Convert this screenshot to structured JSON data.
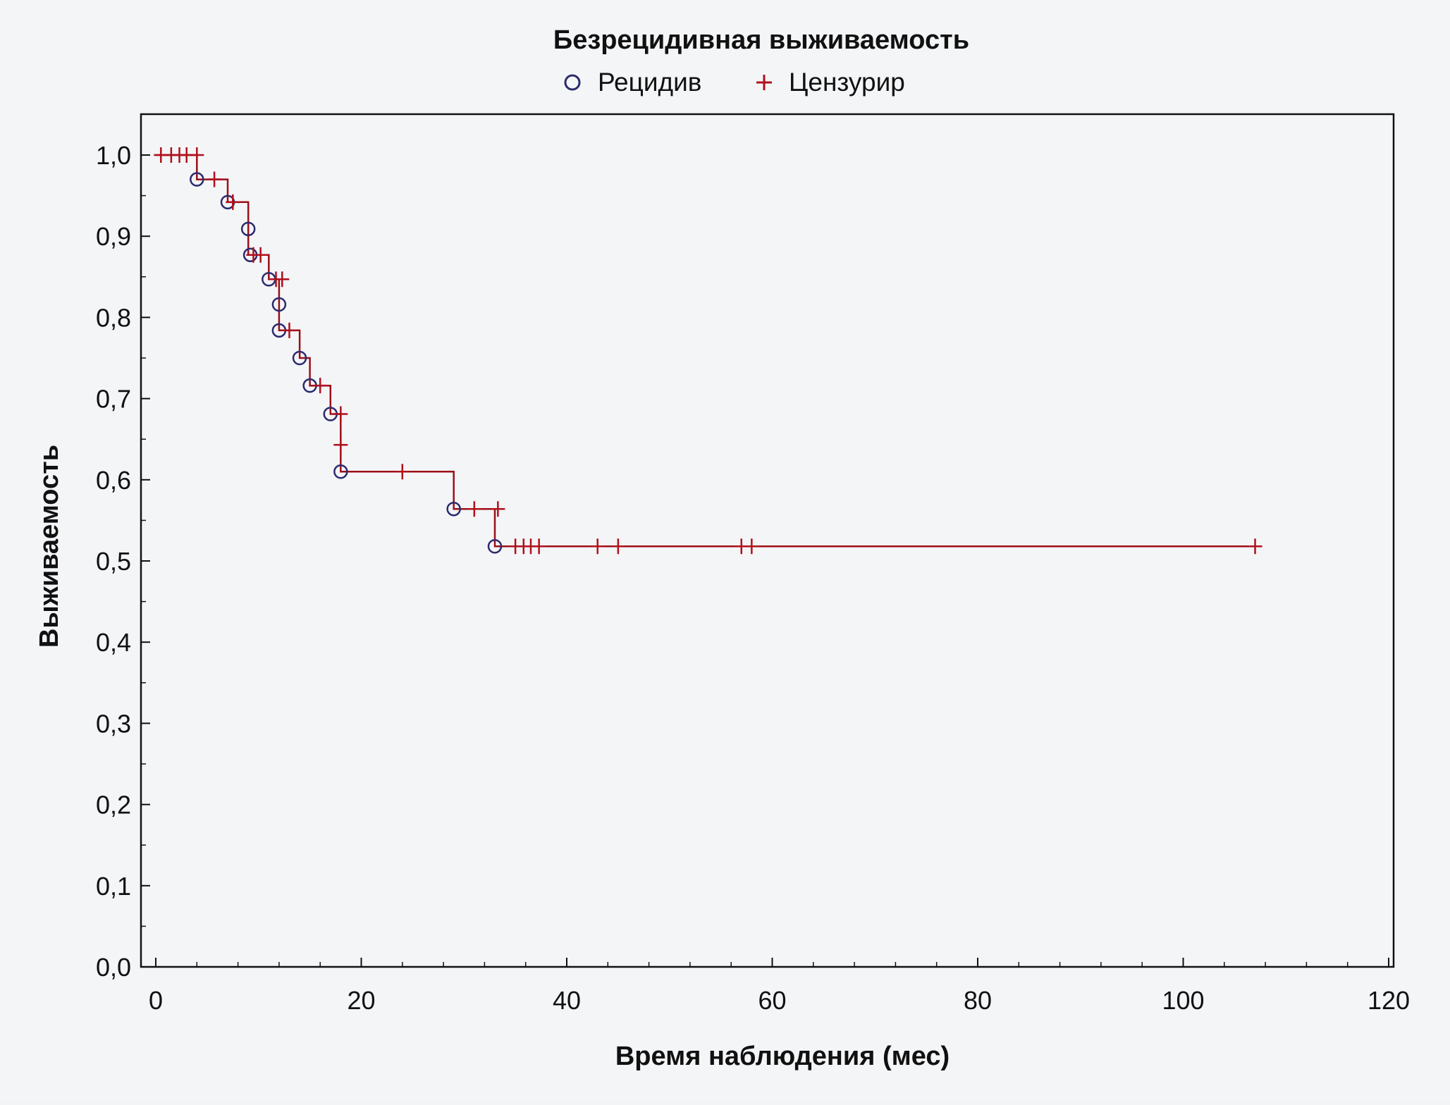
{
  "chart_data": {
    "type": "line",
    "subtype": "kaplan-meier",
    "title": "Безрецидивная выживаемость",
    "xlabel": "Время наблюдения (мес)",
    "ylabel": "Выживаемость",
    "xlim": [
      0,
      120
    ],
    "ylim": [
      0.0,
      1.0
    ],
    "x_ticks": [
      0,
      20,
      40,
      60,
      80,
      100,
      120
    ],
    "x_tick_labels": [
      "0",
      "20",
      "40",
      "60",
      "80",
      "100",
      "120"
    ],
    "y_ticks": [
      0.0,
      0.1,
      0.2,
      0.3,
      0.4,
      0.5,
      0.6,
      0.7,
      0.8,
      0.9,
      1.0
    ],
    "y_tick_labels": [
      "0,0",
      "0,1",
      "0,2",
      "0,3",
      "0,4",
      "0,5",
      "0,6",
      "0,7",
      "0,8",
      "0,9",
      "1,0"
    ],
    "x_minor_step": 4,
    "y_minor_step": 0.05,
    "grid": false,
    "legend_position": "top-center",
    "legend": [
      {
        "label": "Рецидив",
        "marker": "circle",
        "color": "#2b2a6e"
      },
      {
        "label": "Цензурир",
        "marker": "plus",
        "color": "#b0101c"
      }
    ],
    "line_color": "#9b0f18",
    "step_curve": [
      [
        0,
        1.0
      ],
      [
        4,
        1.0
      ],
      [
        4,
        0.97
      ],
      [
        7,
        0.97
      ],
      [
        7,
        0.942
      ],
      [
        9,
        0.942
      ],
      [
        9,
        0.909
      ],
      [
        9,
        0.877
      ],
      [
        11,
        0.877
      ],
      [
        11,
        0.847
      ],
      [
        12,
        0.847
      ],
      [
        12,
        0.816
      ],
      [
        12,
        0.784
      ],
      [
        14,
        0.784
      ],
      [
        14,
        0.75
      ],
      [
        15,
        0.75
      ],
      [
        15,
        0.716
      ],
      [
        17,
        0.716
      ],
      [
        17,
        0.681
      ],
      [
        18,
        0.681
      ],
      [
        18,
        0.61
      ],
      [
        29,
        0.61
      ],
      [
        29,
        0.564
      ],
      [
        33,
        0.564
      ],
      [
        33,
        0.518
      ],
      [
        107,
        0.518
      ]
    ],
    "events": [
      {
        "x": 4,
        "y": 0.97
      },
      {
        "x": 7,
        "y": 0.942
      },
      {
        "x": 9,
        "y": 0.909
      },
      {
        "x": 9.2,
        "y": 0.877
      },
      {
        "x": 11,
        "y": 0.847
      },
      {
        "x": 12,
        "y": 0.816
      },
      {
        "x": 12,
        "y": 0.784
      },
      {
        "x": 14,
        "y": 0.75
      },
      {
        "x": 15,
        "y": 0.716
      },
      {
        "x": 17,
        "y": 0.681
      },
      {
        "x": 18,
        "y": 0.61
      },
      {
        "x": 29,
        "y": 0.564
      },
      {
        "x": 33,
        "y": 0.518
      }
    ],
    "censored": [
      {
        "x": 0.5,
        "y": 1.0
      },
      {
        "x": 1.5,
        "y": 1.0
      },
      {
        "x": 2.3,
        "y": 1.0
      },
      {
        "x": 3.0,
        "y": 1.0
      },
      {
        "x": 4.0,
        "y": 1.0
      },
      {
        "x": 5.7,
        "y": 0.97
      },
      {
        "x": 7.5,
        "y": 0.942
      },
      {
        "x": 9.5,
        "y": 0.877
      },
      {
        "x": 10.2,
        "y": 0.877
      },
      {
        "x": 11.7,
        "y": 0.847
      },
      {
        "x": 12.3,
        "y": 0.847
      },
      {
        "x": 13,
        "y": 0.784
      },
      {
        "x": 16,
        "y": 0.716
      },
      {
        "x": 18,
        "y": 0.681
      },
      {
        "x": 18,
        "y": 0.643
      },
      {
        "x": 24,
        "y": 0.61
      },
      {
        "x": 31,
        "y": 0.564
      },
      {
        "x": 33.3,
        "y": 0.564
      },
      {
        "x": 35,
        "y": 0.518
      },
      {
        "x": 35.8,
        "y": 0.518
      },
      {
        "x": 36.5,
        "y": 0.518
      },
      {
        "x": 37.3,
        "y": 0.518
      },
      {
        "x": 43,
        "y": 0.518
      },
      {
        "x": 45,
        "y": 0.518
      },
      {
        "x": 57,
        "y": 0.518
      },
      {
        "x": 58,
        "y": 0.518
      },
      {
        "x": 107,
        "y": 0.518
      }
    ]
  }
}
